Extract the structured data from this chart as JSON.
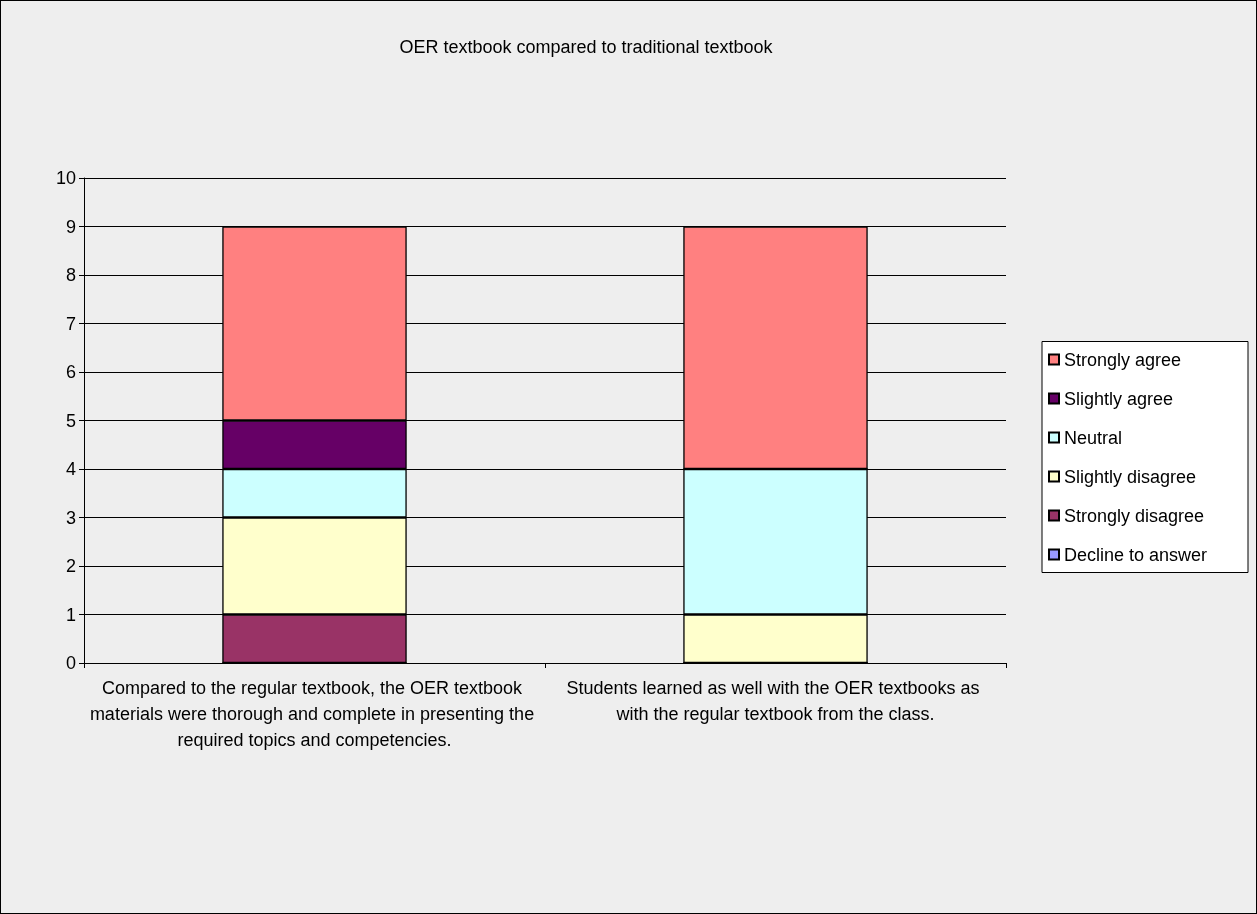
{
  "chart_data": {
    "type": "bar",
    "title": "OER textbook compared to traditional textbook",
    "categories": [
      "Compared to the regular textbook, the OER textbook materials were thorough and complete in presenting the required topics and competencies.",
      "Students learned as well with the OER textbooks as with the regular textbook from the class."
    ],
    "stacked": true,
    "ylim": [
      0,
      10
    ],
    "yticks": [
      0,
      1,
      2,
      3,
      4,
      5,
      6,
      7,
      8,
      9,
      10
    ],
    "grid": "y",
    "legend": "right",
    "series": [
      {
        "name": "Decline to answer",
        "color": "#9999ff",
        "values": [
          0,
          0
        ]
      },
      {
        "name": "Strongly disagree",
        "color": "#993366",
        "values": [
          1,
          0
        ]
      },
      {
        "name": "Slightly disagree",
        "color": "#ffffcc",
        "values": [
          2,
          1
        ]
      },
      {
        "name": "Neutral",
        "color": "#ccffff",
        "values": [
          1,
          3
        ]
      },
      {
        "name": "Slightly agree",
        "color": "#660066",
        "values": [
          1,
          0
        ]
      },
      {
        "name": "Strongly agree",
        "color": "#ff8080",
        "values": [
          4,
          5
        ]
      }
    ]
  }
}
